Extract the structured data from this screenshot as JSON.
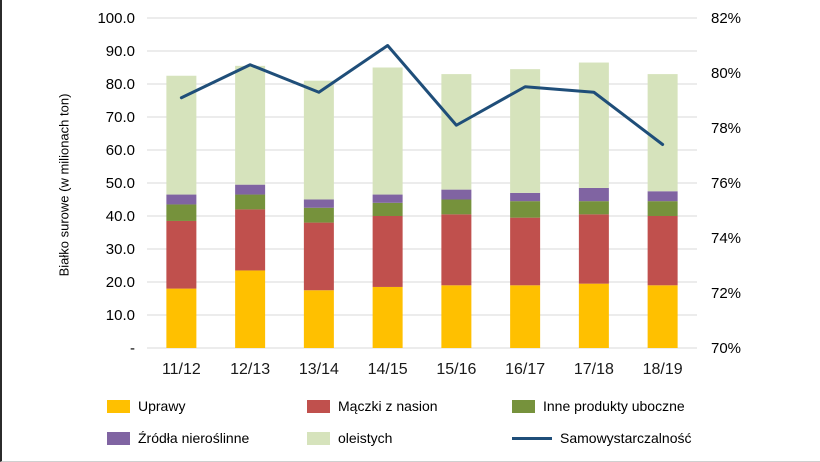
{
  "chart_data": {
    "type": "bar",
    "subtype": "stacked-bar-with-line",
    "title": "",
    "ylabel": "Białko surowe (w milionach ton)",
    "xlabel": "",
    "categories": [
      "11/12",
      "12/13",
      "13/14",
      "14/15",
      "15/16",
      "16/17",
      "17/18",
      "18/19"
    ],
    "series": [
      {
        "name": "Uprawy",
        "color": "#FFC000",
        "values": [
          18.0,
          23.5,
          17.5,
          18.5,
          19.0,
          19.0,
          19.5,
          19.0
        ]
      },
      {
        "name": "Mączki z nasion",
        "color": "#C0504D",
        "values": [
          20.5,
          18.5,
          20.5,
          21.5,
          21.5,
          20.5,
          21.0,
          21.0
        ]
      },
      {
        "name": "Inne produkty uboczne",
        "color": "#76923C",
        "values": [
          5.0,
          4.5,
          4.5,
          4.0,
          4.5,
          5.0,
          4.0,
          4.5
        ]
      },
      {
        "name": "Źródła nieroślinne",
        "color": "#8064A2",
        "values": [
          3.0,
          3.0,
          2.5,
          2.5,
          3.0,
          2.5,
          4.0,
          3.0
        ]
      },
      {
        "name": "oleistych",
        "color": "#D6E3BC",
        "values": [
          36.0,
          36.0,
          36.0,
          38.5,
          35.0,
          37.5,
          38.0,
          35.5
        ]
      }
    ],
    "line_series": {
      "name": "Samowystarczalność",
      "color": "#1F4E79",
      "axis": "right",
      "values": [
        79.1,
        80.3,
        79.3,
        81.0,
        78.1,
        79.5,
        79.3,
        77.4
      ]
    },
    "left_axis": {
      "min": 0,
      "max": 100,
      "tick_labels": [
        "100.0",
        "90.0",
        "80.0",
        "70.0",
        "60.0",
        "50.0",
        "40.0",
        "30.0",
        "20.0",
        "10.0",
        "-"
      ]
    },
    "right_axis": {
      "min": 70,
      "max": 82,
      "tick_labels": [
        "82%",
        "80%",
        "78%",
        "76%",
        "74%",
        "72%",
        "70%"
      ]
    },
    "grid": "horizontal",
    "legend_position": "bottom"
  },
  "legend": {
    "rows": [
      [
        {
          "label": "Uprawy",
          "color": "#FFC000",
          "type": "rect"
        },
        {
          "label": "Mączki z nasion",
          "color": "#C0504D",
          "type": "rect"
        },
        {
          "label": "Inne produkty uboczne",
          "color": "#76923C",
          "type": "rect"
        }
      ],
      [
        {
          "label": "Źródła nieroślinne",
          "color": "#8064A2",
          "type": "rect"
        },
        {
          "label": "oleistych",
          "color": "#D6E3BC",
          "type": "rect"
        },
        {
          "label": "Samowystarczalność",
          "color": "#1F4E79",
          "type": "line"
        }
      ]
    ]
  },
  "colors": {
    "gridline": "#D9D9D9",
    "tick_text": "#000000"
  }
}
